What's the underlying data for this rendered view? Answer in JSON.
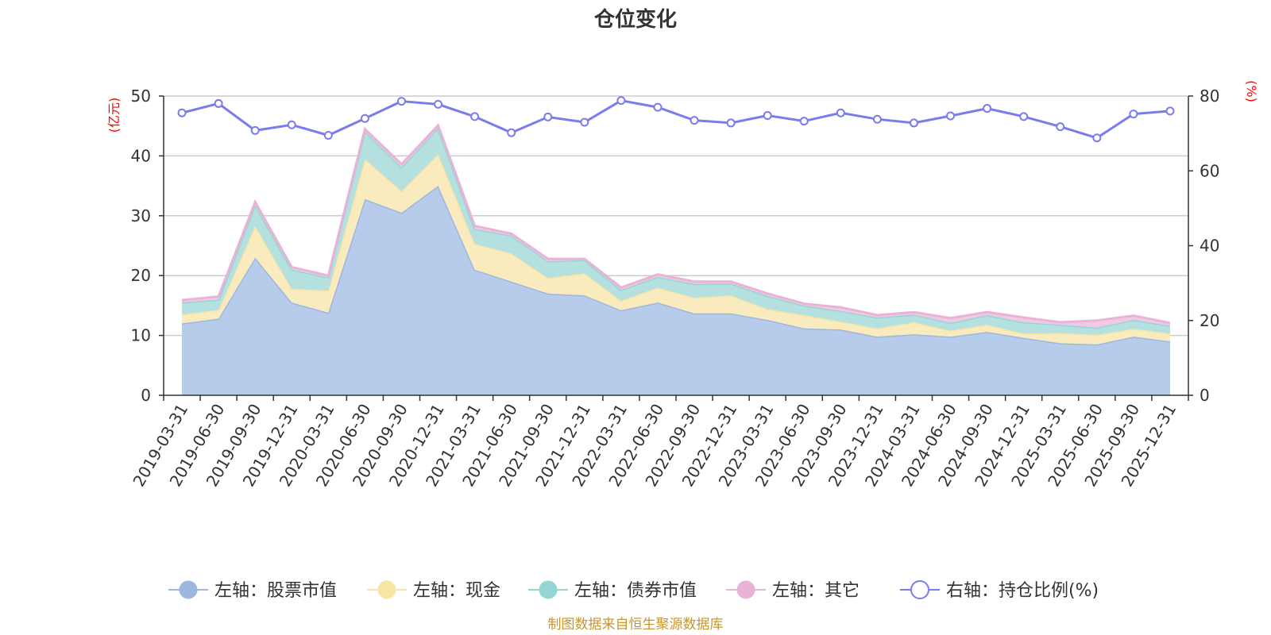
{
  "chart_data": {
    "type": "area",
    "title": "仓位变化",
    "left_axis_unit": "(亿元)",
    "right_axis_unit": "(%)",
    "left_ylim": [
      0,
      50
    ],
    "left_ticks": [
      0,
      10,
      20,
      30,
      40,
      50
    ],
    "right_ylim": [
      0,
      80
    ],
    "right_ticks": [
      0,
      20,
      40,
      60,
      80
    ],
    "categories": [
      "2019-03-31",
      "2019-06-30",
      "2019-09-30",
      "2019-12-31",
      "2020-03-31",
      "2020-06-30",
      "2020-09-30",
      "2020-12-31",
      "2021-03-31",
      "2021-06-30",
      "2021-09-30",
      "2021-12-31",
      "2022-03-31",
      "2022-06-30",
      "2022-09-30",
      "2022-12-31",
      "2023-03-31",
      "2023-06-30",
      "2023-09-30",
      "2023-12-31",
      "2024-03-31",
      "2024-06-30",
      "2024-09-30",
      "2024-12-31",
      "2025-03-31",
      "2025-06-30",
      "2025-09-30",
      "2025-12-31"
    ],
    "stacked_series": [
      {
        "name": "左轴：股票市值",
        "color": "#9db7e0",
        "fill": "#b7cbea",
        "values": [
          12.0,
          12.8,
          23.0,
          15.5,
          13.8,
          32.8,
          30.5,
          35.0,
          21.0,
          19.0,
          17.0,
          16.7,
          14.2,
          15.5,
          13.7,
          13.7,
          12.6,
          11.2,
          11.0,
          9.8,
          10.2,
          9.8,
          10.6,
          9.6,
          8.7,
          8.5,
          9.8,
          9.0
        ]
      },
      {
        "name": "左轴：现金",
        "color": "#f7e5a6",
        "fill": "#f9ebbd",
        "values": [
          1.5,
          1.5,
          5.3,
          2.3,
          3.7,
          6.7,
          3.6,
          5.3,
          4.3,
          4.7,
          2.6,
          3.7,
          1.6,
          2.5,
          2.6,
          3.0,
          1.8,
          2.2,
          1.3,
          1.4,
          2.0,
          1.0,
          1.2,
          0.7,
          1.7,
          1.6,
          1.3,
          1.3
        ]
      },
      {
        "name": "左轴：债券市值",
        "color": "#94d6d4",
        "fill": "#b4e0df",
        "values": [
          2.0,
          1.7,
          3.5,
          3.2,
          2.2,
          4.6,
          4.0,
          4.4,
          2.5,
          3.0,
          2.8,
          2.2,
          1.8,
          1.8,
          2.3,
          2.0,
          2.2,
          1.6,
          1.8,
          1.8,
          1.3,
          1.3,
          1.6,
          1.9,
          1.4,
          1.2,
          1.5,
          1.3
        ]
      },
      {
        "name": "左轴：其它",
        "color": "#e9b3d8",
        "fill": "#f1c9e4",
        "values": [
          0.4,
          0.5,
          0.5,
          0.4,
          0.3,
          0.4,
          0.5,
          0.4,
          0.5,
          0.3,
          0.4,
          0.2,
          0.4,
          0.4,
          0.4,
          0.3,
          0.4,
          0.3,
          0.6,
          0.4,
          0.4,
          0.8,
          0.5,
          0.8,
          0.4,
          1.2,
          0.7,
          0.5
        ]
      }
    ],
    "line_series": {
      "name": "右轴：持仓比例(%)",
      "color": "#7a7ced",
      "values": [
        75.5,
        78.0,
        70.8,
        72.3,
        69.5,
        74.0,
        78.6,
        77.8,
        74.5,
        70.2,
        74.4,
        73.0,
        78.8,
        77.0,
        73.5,
        72.8,
        74.8,
        73.3,
        75.5,
        73.8,
        72.8,
        74.7,
        76.7,
        74.5,
        71.8,
        68.8,
        75.2,
        76.0
      ]
    },
    "legend": [
      "左轴：股票市值",
      "左轴：现金",
      "左轴：债券市值",
      "左轴：其它",
      "右轴：持仓比例(%)"
    ]
  },
  "footer": "制图数据来自恒生聚源数据库"
}
